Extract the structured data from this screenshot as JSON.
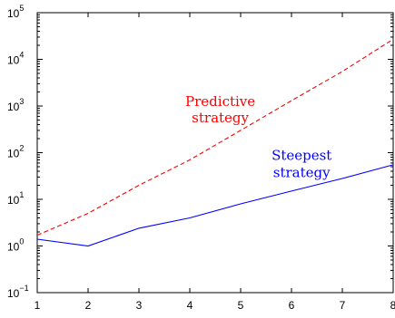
{
  "chart_data": {
    "type": "line",
    "title": "",
    "xlabel": "",
    "ylabel": "",
    "x": [
      1,
      2,
      3,
      4,
      5,
      6,
      7,
      8
    ],
    "xlim": [
      1,
      8
    ],
    "ylim": [
      0.1,
      100000
    ],
    "y_scale": "log",
    "grid": false,
    "x_ticks": [
      "1",
      "2",
      "3",
      "4",
      "5",
      "6",
      "7",
      "8"
    ],
    "y_ticks": [
      {
        "base": "10",
        "exp": "5",
        "value": 100000
      },
      {
        "base": "10",
        "exp": "4",
        "value": 10000
      },
      {
        "base": "10",
        "exp": "3",
        "value": 1000
      },
      {
        "base": "10",
        "exp": "2",
        "value": 100
      },
      {
        "base": "10",
        "exp": "1",
        "value": 10
      },
      {
        "base": "10",
        "exp": "0",
        "value": 1
      },
      {
        "base": "10",
        "exp": "−1",
        "value": 0.1
      }
    ],
    "series": [
      {
        "key": "predictive",
        "color": "#ff0000",
        "style": "dashed",
        "values": [
          1.7,
          5,
          20,
          70,
          300,
          1300,
          5500,
          27000
        ]
      },
      {
        "key": "steepest",
        "color": "#0000ff",
        "style": "solid",
        "values": [
          1.4,
          1.0,
          2.4,
          4,
          8,
          15,
          28,
          55
        ]
      }
    ],
    "annotations": [
      {
        "series": "predictive",
        "color": "#ff0000",
        "line1": "Predictive",
        "line2": "strategy",
        "x": 4.6,
        "y1": 1000,
        "y2": 450
      },
      {
        "series": "steepest",
        "color": "#0000ff",
        "line1": "Steepest",
        "line2": "strategy",
        "x": 6.2,
        "y1": 70,
        "y2": 30
      }
    ]
  }
}
